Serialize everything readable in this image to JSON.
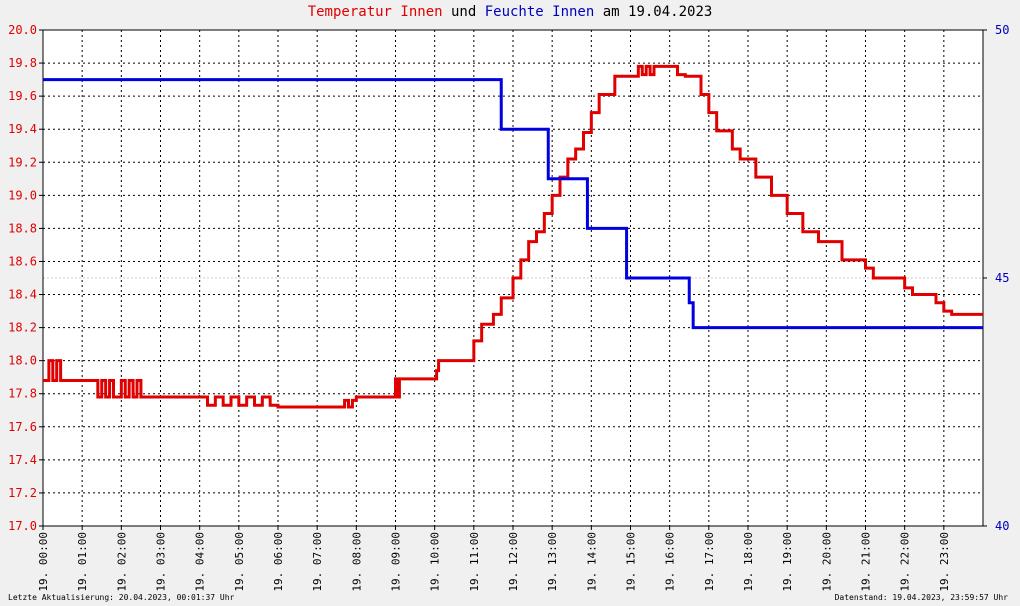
{
  "title": {
    "part1": "Temperatur Innen",
    "part2": "und",
    "part3": "Feuchte Innen",
    "part4": "am 19.04.2023"
  },
  "footer": {
    "left": "Letzte Aktualisierung: 20.04.2023, 00:01:37 Uhr",
    "right": "Datenstand: 19.04.2023, 23:59:57 Uhr"
  },
  "colors": {
    "temperature": "#e00000",
    "humidity": "#0000e0",
    "left_axis": "#e00000",
    "right_axis": "#0000c0",
    "background": "#ffffff",
    "page": "#f0f0f0"
  },
  "chart_data": {
    "type": "line",
    "grid": true,
    "x_range_hours": [
      0,
      24
    ],
    "x_tick_labels": [
      "19. 00:00",
      "19. 01:00",
      "19. 02:00",
      "19. 03:00",
      "19. 04:00",
      "19. 05:00",
      "19. 06:00",
      "19. 07:00",
      "19. 08:00",
      "19. 09:00",
      "19. 10:00",
      "19. 11:00",
      "19. 12:00",
      "19. 13:00",
      "19. 14:00",
      "19. 15:00",
      "19. 16:00",
      "19. 17:00",
      "19. 18:00",
      "19. 19:00",
      "19. 20:00",
      "19. 21:00",
      "19. 22:00",
      "19. 23:00"
    ],
    "y_left": {
      "range": [
        17.0,
        20.0
      ],
      "ticks": [
        "17.0",
        "17.2",
        "17.4",
        "17.6",
        "17.8",
        "18.0",
        "18.2",
        "18.4",
        "18.6",
        "18.8",
        "19.0",
        "19.2",
        "19.4",
        "19.6",
        "19.8",
        "20.0"
      ]
    },
    "y_right": {
      "range": [
        40,
        50
      ],
      "ticks": [
        "40",
        "45",
        "50"
      ]
    },
    "series": [
      {
        "name": "Temperatur Innen",
        "axis": "left",
        "x": [
          0,
          0.15,
          0.25,
          0.35,
          0.45,
          0.6,
          1.0,
          1.3,
          1.4,
          1.5,
          1.6,
          1.7,
          1.8,
          2.0,
          2.1,
          2.2,
          2.3,
          2.4,
          2.5,
          3.0,
          3.5,
          4.0,
          4.2,
          4.4,
          4.6,
          4.8,
          5.0,
          5.2,
          5.4,
          5.6,
          5.8,
          6.0,
          7.0,
          7.5,
          7.7,
          7.8,
          7.9,
          8.0,
          8.5,
          9.0,
          9.05,
          9.1,
          9.15,
          10.0,
          10.05,
          10.1,
          10.5,
          11.0,
          11.2,
          11.5,
          11.7,
          12.0,
          12.2,
          12.4,
          12.6,
          12.8,
          13.0,
          13.2,
          13.4,
          13.6,
          13.8,
          14.0,
          14.2,
          14.4,
          14.6,
          14.8,
          15.0,
          15.2,
          15.3,
          15.4,
          15.5,
          15.6,
          15.8,
          16.0,
          16.2,
          16.4,
          16.6,
          16.8,
          17.0,
          17.2,
          17.4,
          17.6,
          17.8,
          18.0,
          18.2,
          18.4,
          18.6,
          18.8,
          19.0,
          19.2,
          19.4,
          19.6,
          19.8,
          20.0,
          20.2,
          20.4,
          20.6,
          20.8,
          21.0,
          21.2,
          21.4,
          21.6,
          21.8,
          22.0,
          22.2,
          22.4,
          22.6,
          22.8,
          23.0,
          23.2,
          23.4,
          23.6,
          23.8,
          24.0
        ],
        "y": [
          17.88,
          18.0,
          17.88,
          18.0,
          17.88,
          17.88,
          17.88,
          17.88,
          17.78,
          17.88,
          17.78,
          17.88,
          17.78,
          17.88,
          17.78,
          17.88,
          17.78,
          17.88,
          17.78,
          17.78,
          17.78,
          17.78,
          17.73,
          17.78,
          17.73,
          17.78,
          17.73,
          17.78,
          17.73,
          17.78,
          17.73,
          17.72,
          17.72,
          17.72,
          17.76,
          17.72,
          17.76,
          17.78,
          17.78,
          17.89,
          17.78,
          17.89,
          17.89,
          17.89,
          17.94,
          18.0,
          18.0,
          18.12,
          18.22,
          18.28,
          18.38,
          18.5,
          18.61,
          18.72,
          18.78,
          18.89,
          19.0,
          19.11,
          19.22,
          19.28,
          19.38,
          19.5,
          19.61,
          19.61,
          19.72,
          19.72,
          19.72,
          19.78,
          19.73,
          19.78,
          19.73,
          19.78,
          19.78,
          19.78,
          19.73,
          19.72,
          19.72,
          19.61,
          19.5,
          19.39,
          19.39,
          19.28,
          19.22,
          19.22,
          19.11,
          19.11,
          19.0,
          19.0,
          18.89,
          18.89,
          18.78,
          18.78,
          18.72,
          18.72,
          18.72,
          18.61,
          18.61,
          18.61,
          18.56,
          18.5,
          18.5,
          18.5,
          18.5,
          18.44,
          18.4,
          18.4,
          18.4,
          18.35,
          18.3,
          18.28,
          18.28,
          18.28,
          18.28,
          18.28
        ]
      },
      {
        "name": "Feuchte Innen",
        "axis": "right",
        "x": [
          0,
          11.7,
          11.7,
          12.9,
          12.9,
          13.9,
          13.9,
          14.9,
          14.9,
          16.5,
          16.5,
          16.6,
          16.6,
          24.0
        ],
        "y": [
          49.0,
          49.0,
          48.0,
          48.0,
          47.0,
          47.0,
          46.0,
          46.0,
          45.0,
          45.0,
          44.5,
          44.5,
          44.0,
          44.0
        ]
      }
    ]
  }
}
